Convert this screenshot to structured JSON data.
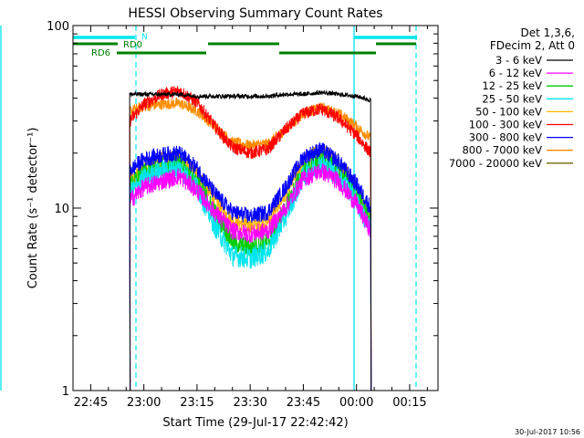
{
  "chart_data": {
    "type": "line",
    "title": "HESSI Observing Summary Count Rates",
    "xlabel": "Start Time (29-Jul-17 22:42:42)",
    "ylabel": "Count Rate (s⁻¹ detector⁻¹)",
    "yscale": "log",
    "ylim": [
      1,
      100
    ],
    "xlim": [
      "22:40",
      "00:23"
    ],
    "x_ticks": [
      "22:45",
      "23:00",
      "23:15",
      "23:30",
      "23:45",
      "00:00",
      "00:15"
    ],
    "y_ticks": [
      "1",
      "10",
      "100"
    ],
    "grid": false,
    "legend_header": [
      "Det 1,3,6,",
      "FDecim 2, Att 0"
    ],
    "legend_placement": "right",
    "timestamp": "30-Jul-2017 10:56",
    "flag_labels": {
      "n": "N",
      "rd0": "RD0",
      "rd6": "RD6"
    },
    "colors": {
      "saa_line": "#00e5ee",
      "night_bar": "#00e5ee",
      "rd_bar": "#008000"
    },
    "x_times": [
      "22:56",
      "23:00",
      "23:05",
      "23:10",
      "23:15",
      "23:20",
      "23:25",
      "23:30",
      "23:35",
      "23:40",
      "23:45",
      "23:50",
      "23:55",
      "00:00",
      "00:04"
    ],
    "series": [
      {
        "name": "3 - 6 keV",
        "color": "#000000",
        "values": [
          42,
          42,
          42,
          42,
          41,
          41,
          41,
          41,
          41,
          42,
          42,
          43,
          42,
          41,
          39
        ]
      },
      {
        "name": "6 - 12 keV",
        "color": "#ff00ff",
        "values": [
          11,
          13,
          14,
          15,
          12.5,
          9.5,
          7.5,
          7.2,
          7.5,
          10,
          14.5,
          16,
          14,
          10.5,
          7.5
        ]
      },
      {
        "name": "12 - 25 keV",
        "color": "#00cc00",
        "values": [
          13,
          15.5,
          17,
          17.5,
          14,
          9.5,
          6.5,
          6,
          6.5,
          10,
          16,
          18.5,
          16,
          12,
          8.5
        ]
      },
      {
        "name": "25 - 50 keV",
        "color": "#00e5ee",
        "values": [
          12,
          14.5,
          16,
          16.5,
          13,
          8,
          5.5,
          5.3,
          5.8,
          9,
          15,
          17.5,
          15,
          11,
          7.5
        ]
      },
      {
        "name": "50 - 100 keV",
        "color": "#ffb400",
        "values": [
          14,
          16.5,
          18.5,
          19,
          15.5,
          11,
          8.5,
          8,
          8.5,
          12,
          18,
          21,
          18,
          13,
          9
        ]
      },
      {
        "name": "100 - 300 keV",
        "color": "#ff0000",
        "values": [
          30,
          37,
          42,
          44,
          38,
          28,
          21.5,
          20,
          21,
          27,
          33,
          35,
          31,
          25,
          20
        ]
      },
      {
        "name": "300 - 800 keV",
        "color": "#0000ff",
        "values": [
          16,
          18.5,
          19.5,
          20,
          16.5,
          12,
          9.5,
          9,
          9.5,
          13,
          19,
          21,
          18,
          13.5,
          10
        ]
      },
      {
        "name": "800 - 7000 keV",
        "color": "#ff8c00",
        "values": [
          34,
          36,
          37,
          37.5,
          34,
          28,
          23,
          22,
          22.5,
          27,
          33,
          35.5,
          33,
          28,
          24
        ]
      },
      {
        "name": "7000 - 20000 keV",
        "color": "#6b6b00",
        "values": [
          null,
          null,
          null,
          null,
          null,
          null,
          null,
          null,
          null,
          null,
          null,
          null,
          null,
          null,
          null
        ]
      }
    ]
  }
}
